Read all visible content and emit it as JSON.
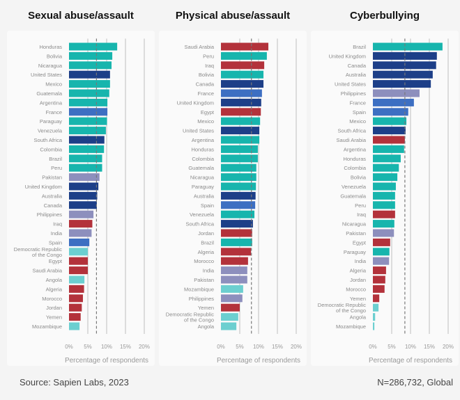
{
  "colors": {
    "latin_america": "#17b5ad",
    "anglosphere": "#1d3f88",
    "europe": "#3d6fc2",
    "south_asia": "#8d8fbd",
    "mena": "#b3323b",
    "sub_saharan": "#6ccfd0",
    "gridline": "#c8c8c8",
    "average_line": "#777777"
  },
  "chart_data": [
    {
      "type": "bar",
      "orientation": "horizontal",
      "title": "Sexual abuse/assault",
      "xlabel": "Percentage of respondents",
      "xticks": [
        "0%",
        "5%",
        "10%",
        "15%",
        "20%"
      ],
      "xlim": [
        0,
        20
      ],
      "average_line": 7.3,
      "categories": [
        "Honduras",
        "Bolivia",
        "Nicaragua",
        "United States",
        "Mexico",
        "Guatemala",
        "Argentina",
        "France",
        "Paraguay",
        "Venezuela",
        "South Africa",
        "Colombia",
        "Brazil",
        "Peru",
        "Pakistan",
        "United Kingdom",
        "Australia",
        "Canada",
        "Philippines",
        "Iraq",
        "India",
        "Spain",
        "Democratic Republic of the Congo",
        "Egypt",
        "Saudi Arabia",
        "Angola",
        "Algeria",
        "Morocco",
        "Jordan",
        "Yemen",
        "Mozambique"
      ],
      "values": [
        12.8,
        11.5,
        11.3,
        10.9,
        10.9,
        10.7,
        10.2,
        10.2,
        10.1,
        9.8,
        9.4,
        9.3,
        8.8,
        8.8,
        8.1,
        7.8,
        7.5,
        7.4,
        6.5,
        6.2,
        6.0,
        5.4,
        5.0,
        5.0,
        5.0,
        4.1,
        4.0,
        3.7,
        3.4,
        3.1,
        2.8
      ]
    },
    {
      "type": "bar",
      "orientation": "horizontal",
      "title": "Physical abuse/assault",
      "xlabel": "Percentage of respondents",
      "xticks": [
        "0%",
        "5%",
        "10%",
        "15%",
        "20%"
      ],
      "xlim": [
        0,
        20
      ],
      "average_line": 8.1,
      "categories": [
        "Saudi Arabia",
        "Peru",
        "Iraq",
        "Bolivia",
        "Canada",
        "France",
        "United Kingdom",
        "Egypt",
        "Mexico",
        "United States",
        "Argentina",
        "Honduras",
        "Colombia",
        "Guatemala",
        "Nicaragua",
        "Paraguay",
        "Australia",
        "Spain",
        "Venezuela",
        "South Africa",
        "Jordan",
        "Brazil",
        "Algeria",
        "Morocco",
        "India",
        "Pakistan",
        "Mozambique",
        "Philippines",
        "Yemen",
        "Democratic Republic of the Congo",
        "Angola"
      ],
      "values": [
        12.6,
        12.2,
        11.5,
        11.3,
        11.3,
        10.9,
        10.7,
        10.6,
        10.4,
        10.2,
        10.2,
        9.8,
        9.8,
        9.4,
        9.4,
        9.3,
        9.2,
        9.1,
        8.9,
        8.5,
        8.3,
        8.3,
        8.0,
        7.2,
        7.0,
        7.0,
        5.9,
        5.7,
        5.0,
        4.6,
        4.1
      ]
    },
    {
      "type": "bar",
      "orientation": "horizontal",
      "title": "Cyberbullying",
      "xlabel": "Percentage of respondents",
      "xticks": [
        "0%",
        "5%",
        "10%",
        "15%",
        "20%"
      ],
      "xlim": [
        0,
        20
      ],
      "average_line": 8.5,
      "categories": [
        "Brazil",
        "United Kingdom",
        "Canada",
        "Australia",
        "United States",
        "Philippines",
        "France",
        "Spain",
        "Mexico",
        "South Africa",
        "Saudi Arabia",
        "Argentina",
        "Honduras",
        "Colombia",
        "Bolivia",
        "Venezuela",
        "Guatemala",
        "Peru",
        "Iraq",
        "Nicaragua",
        "Pakistan",
        "Egypt",
        "Paraguay",
        "India",
        "Algeria",
        "Jordan",
        "Morocco",
        "Yemen",
        "Democratic Republic of the Congo",
        "Angola",
        "Mozambique"
      ],
      "values": [
        18.5,
        17.0,
        16.8,
        15.9,
        15.4,
        12.4,
        10.9,
        9.4,
        8.9,
        8.7,
        8.5,
        8.3,
        7.4,
        6.9,
        6.5,
        6.1,
        5.9,
        5.9,
        5.9,
        5.7,
        5.6,
        4.6,
        4.4,
        4.3,
        3.5,
        3.3,
        3.1,
        1.7,
        1.5,
        0.6,
        0.4
      ]
    }
  ],
  "footer": {
    "source": "Source: Sapien Labs, 2023",
    "sample": "N=286,732, Global"
  }
}
